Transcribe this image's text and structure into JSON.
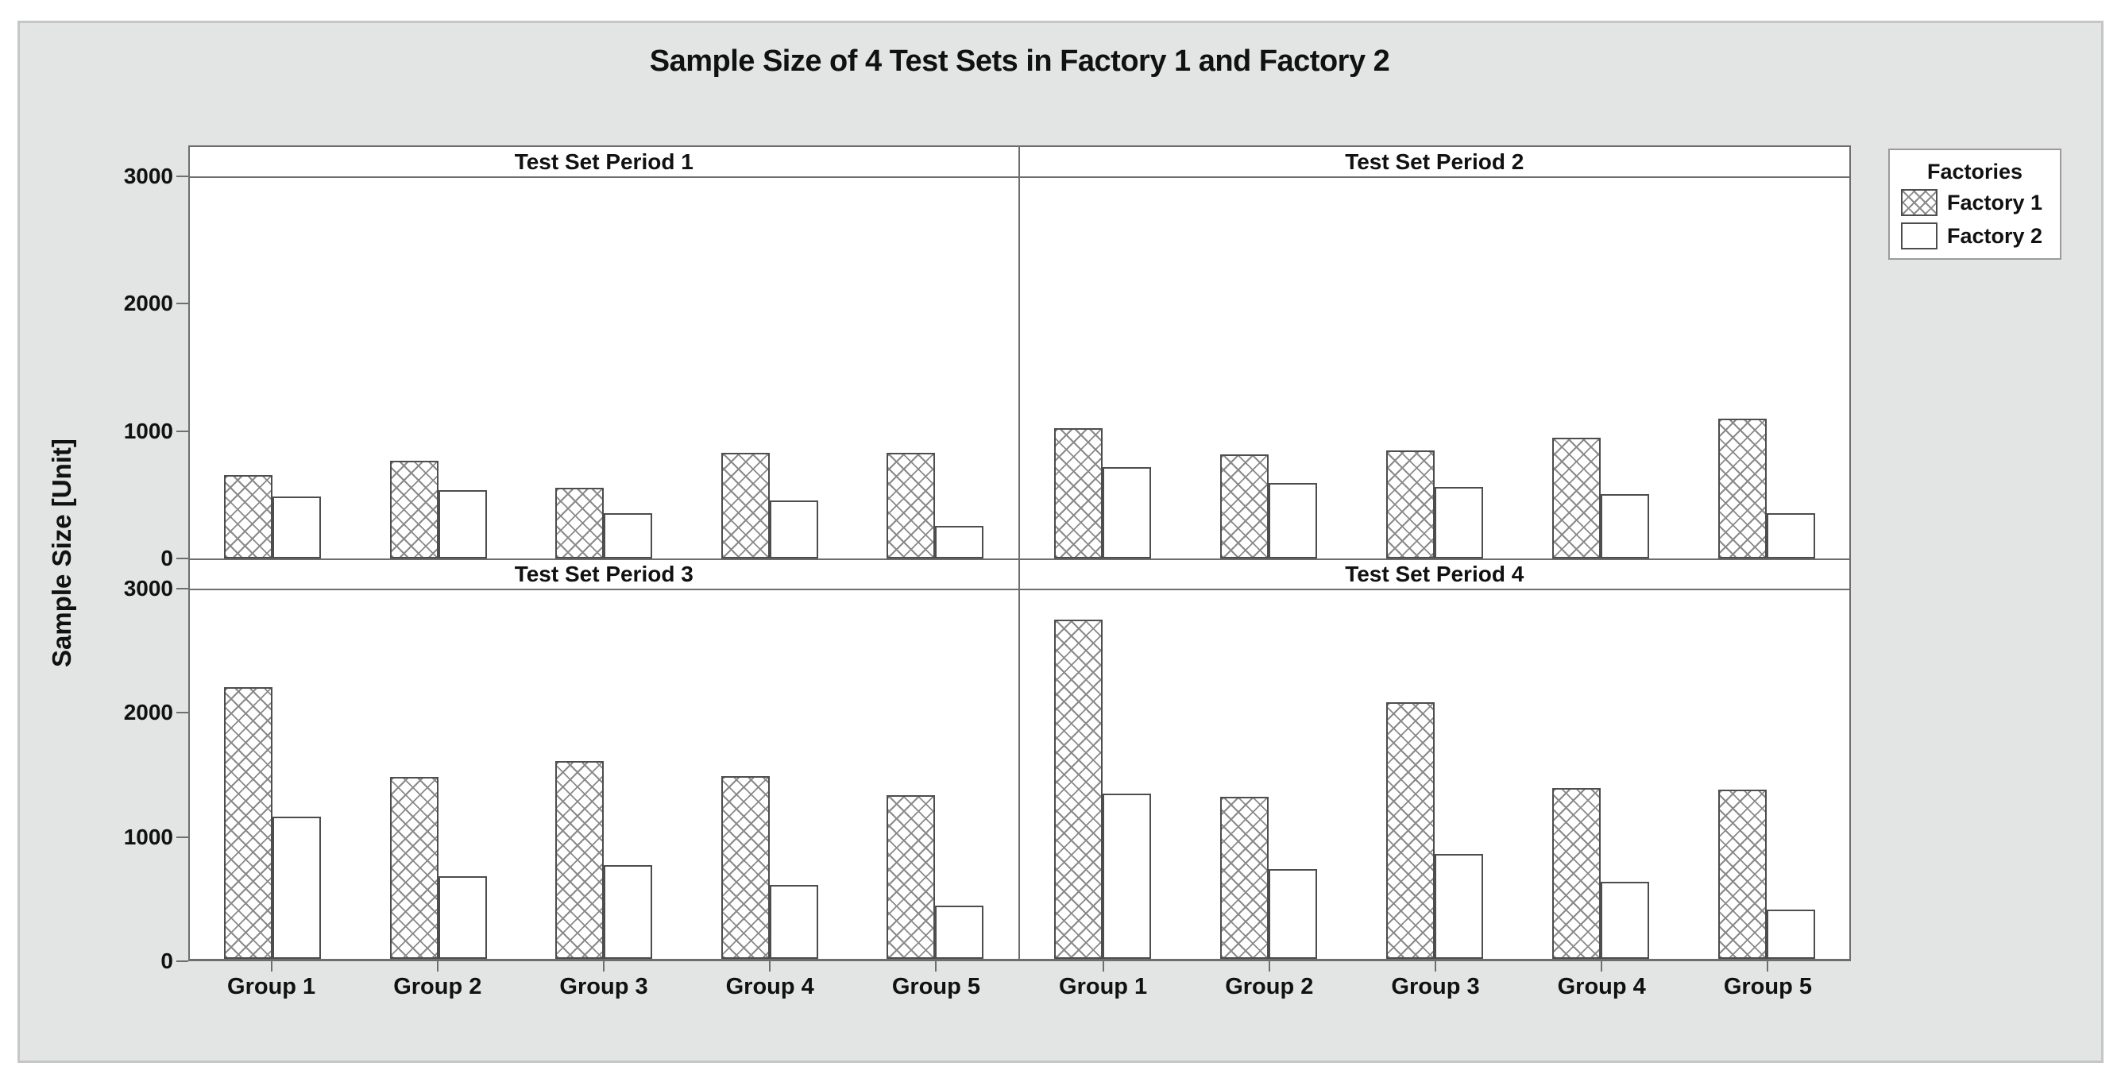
{
  "figure": {
    "title": "Sample Size of 4 Test Sets in Factory 1 and Factory 2",
    "background_color": "#e3e4e4",
    "plot_background": "#ffffff",
    "line_color": "#6e6e6e",
    "bar_outline_color": "#4d4d4d",
    "hatch_color": "#8a8a8a"
  },
  "chart_data": {
    "type": "bar",
    "title": "Sample Size of 4 Test Sets in Factory 1 and Factory 2",
    "xlabel": "",
    "ylabel": "Sample Size [Unit]",
    "ylim": [
      0,
      3000
    ],
    "y_ticks": [
      0,
      1000,
      2000,
      3000
    ],
    "grid": false,
    "categories": [
      "Group 1",
      "Group 2",
      "Group 3",
      "Group 4",
      "Group 5"
    ],
    "legend": {
      "title": "Factories",
      "position": "top-right",
      "entries": [
        {
          "label": "Factory 1",
          "pattern": "crosshatch"
        },
        {
          "label": "Factory 2",
          "pattern": "solid-white"
        }
      ]
    },
    "panels": [
      {
        "label": "Test Set Period 1",
        "series": [
          {
            "name": "Factory 1",
            "values": [
              655,
              770,
              555,
              835,
              830
            ]
          },
          {
            "name": "Factory 2",
            "values": [
              490,
              540,
              355,
              455,
              260
            ]
          }
        ]
      },
      {
        "label": "Test Set Period 2",
        "series": [
          {
            "name": "Factory 1",
            "values": [
              1030,
              820,
              850,
              950,
              1100
            ]
          },
          {
            "name": "Factory 2",
            "values": [
              720,
              595,
              565,
              505,
              355
            ]
          }
        ]
      },
      {
        "label": "Test Set Period 3",
        "series": [
          {
            "name": "Factory 1",
            "values": [
              2210,
              1480,
              1610,
              1490,
              1330
            ]
          },
          {
            "name": "Factory 2",
            "values": [
              1160,
              670,
              765,
              600,
              435
            ]
          }
        ]
      },
      {
        "label": "Test Set Period 4",
        "series": [
          {
            "name": "Factory 1",
            "values": [
              2760,
              1320,
              2090,
              1390,
              1375
            ]
          },
          {
            "name": "Factory 2",
            "values": [
              1345,
              730,
              855,
              630,
              400
            ]
          }
        ]
      }
    ]
  }
}
